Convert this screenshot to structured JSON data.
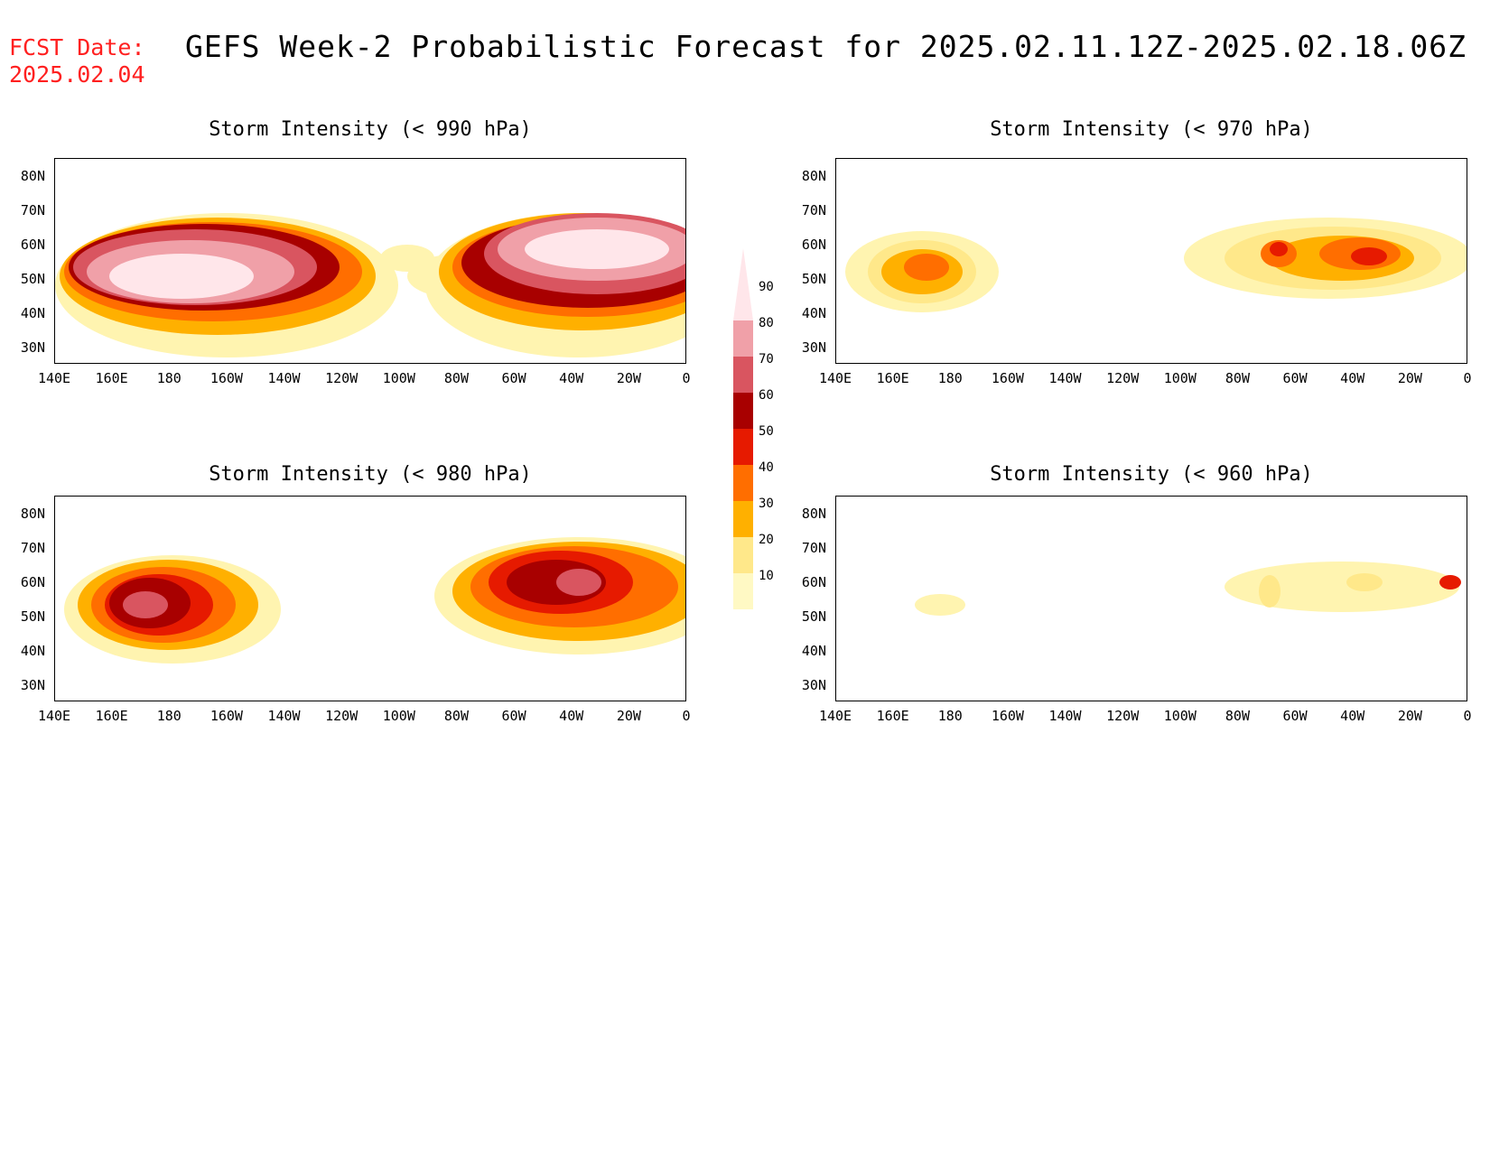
{
  "header": {
    "fcst_label": "FCST Date:",
    "fcst_date": "2025.02.04",
    "title": "GEFS Week-2 Probabilistic Forecast for 2025.02.11.12Z-2025.02.18.06Z"
  },
  "panels": [
    {
      "title": "Storm Intensity (< 990 hPa)"
    },
    {
      "title": "Storm Intensity (< 970 hPa)"
    },
    {
      "title": "Storm Intensity (< 980 hPa)"
    },
    {
      "title": "Storm Intensity (< 960 hPa)"
    }
  ],
  "axes": {
    "lat_labels": [
      "80N",
      "70N",
      "60N",
      "50N",
      "40N",
      "30N"
    ],
    "lon_labels": [
      "140E",
      "160E",
      "180",
      "160W",
      "140W",
      "120W",
      "100W",
      "80W",
      "60W",
      "40W",
      "20W",
      "0"
    ]
  },
  "colorbar": {
    "levels": [
      "10",
      "20",
      "30",
      "40",
      "50",
      "60",
      "70",
      "80",
      "90"
    ],
    "colors": [
      "#fff9c4",
      "#ffe88a",
      "#ffb000",
      "#ff6e00",
      "#e61a00",
      "#a80000",
      "#d95560",
      "#f0a0a8",
      "#ffe6ea"
    ]
  }
}
